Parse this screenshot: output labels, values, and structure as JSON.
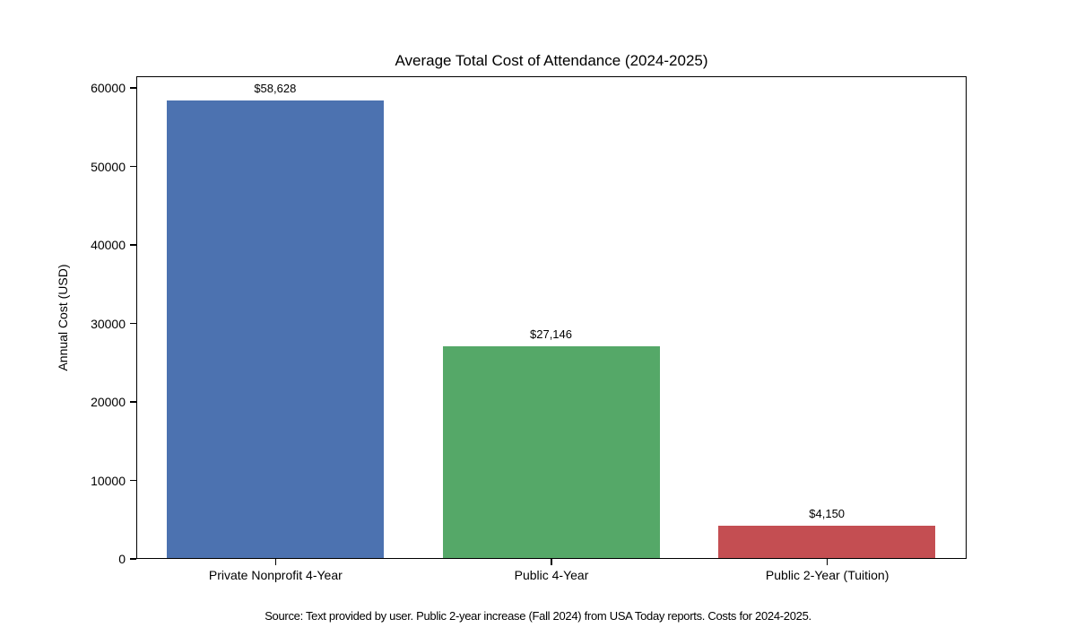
{
  "chart_data": {
    "type": "bar",
    "title": "Average Total Cost of Attendance (2024-2025)",
    "categories": [
      "Private Nonprofit 4-Year",
      "Public 4-Year",
      "Public 2-Year (Tuition)"
    ],
    "values": [
      58628,
      27146,
      4150
    ],
    "value_labels": [
      "$58,628",
      "$27,146",
      "$4,150"
    ],
    "bar_colors": [
      "#4C72B0",
      "#55A868",
      "#C44E52"
    ],
    "xlabel": "",
    "ylabel": "Annual Cost (USD)",
    "ylim": [
      0,
      61500
    ],
    "yticks": [
      0,
      10000,
      20000,
      30000,
      40000,
      50000,
      60000
    ],
    "grid": false,
    "legend": null,
    "background_color": "#ffffff",
    "spine_color": "#000000"
  },
  "footer": {
    "source_note": "Source: Text provided by user. Public 2-year increase (Fall 2024) from USA Today reports. Costs for 2024-2025."
  }
}
